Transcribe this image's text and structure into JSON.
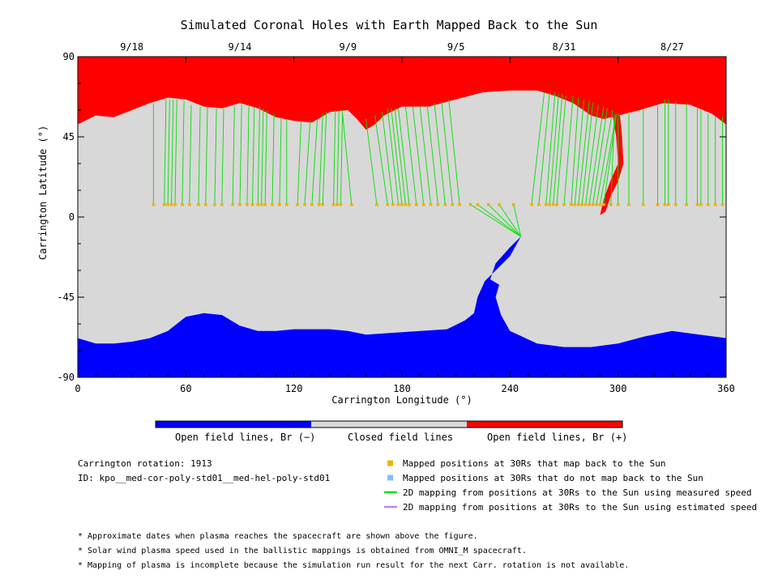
{
  "chart_data": {
    "type": "heatmap",
    "title": "Simulated Coronal Holes with Earth Mapped Back to the Sun",
    "xlabel": "Carrington Longitude (°)",
    "ylabel": "Carrington Latitude (°)",
    "xlim": [
      0,
      360
    ],
    "ylim": [
      -90,
      90
    ],
    "x_ticks": [
      0,
      60,
      120,
      180,
      240,
      300,
      360
    ],
    "y_ticks": [
      -90,
      -45,
      0,
      45,
      90
    ],
    "top_axis_dates": [
      {
        "label": "9/18",
        "lon": 30
      },
      {
        "label": "9/14",
        "lon": 90
      },
      {
        "label": "9/9",
        "lon": 150
      },
      {
        "label": "9/5",
        "lon": 210
      },
      {
        "label": "8/31",
        "lon": 270
      },
      {
        "label": "8/27",
        "lon": 330
      }
    ],
    "colors": {
      "open_negative": "#0000ff",
      "closed": "#d8d8d8",
      "open_positive": "#ff0000",
      "mapped_points": "#f0b000",
      "unmapped_points": "#7fbfff",
      "measured_speed_lines": "#00e000",
      "estimated_speed_lines": "#c080ff"
    },
    "north_hole_boundary": [
      [
        0,
        52
      ],
      [
        10,
        57
      ],
      [
        20,
        56
      ],
      [
        30,
        60
      ],
      [
        40,
        64
      ],
      [
        50,
        67
      ],
      [
        60,
        66
      ],
      [
        70,
        62
      ],
      [
        80,
        61
      ],
      [
        90,
        64
      ],
      [
        100,
        61
      ],
      [
        110,
        56
      ],
      [
        120,
        54
      ],
      [
        130,
        53
      ],
      [
        140,
        59
      ],
      [
        150,
        60
      ],
      [
        155,
        55
      ],
      [
        160,
        49
      ],
      [
        165,
        52
      ],
      [
        170,
        57
      ],
      [
        180,
        62
      ],
      [
        195,
        62
      ],
      [
        210,
        66
      ],
      [
        225,
        70
      ],
      [
        240,
        71
      ],
      [
        255,
        71
      ],
      [
        265,
        68
      ],
      [
        275,
        64
      ],
      [
        285,
        57
      ],
      [
        292,
        55
      ],
      [
        300,
        57
      ],
      [
        312,
        60
      ],
      [
        325,
        64
      ],
      [
        340,
        63
      ],
      [
        352,
        58
      ],
      [
        360,
        52
      ]
    ],
    "south_hole_boundary": [
      [
        0,
        -68
      ],
      [
        10,
        -71
      ],
      [
        20,
        -71
      ],
      [
        30,
        -70
      ],
      [
        40,
        -68
      ],
      [
        50,
        -64
      ],
      [
        60,
        -56
      ],
      [
        70,
        -54
      ],
      [
        80,
        -55
      ],
      [
        90,
        -61
      ],
      [
        100,
        -64
      ],
      [
        110,
        -64
      ],
      [
        120,
        -63
      ],
      [
        130,
        -63
      ],
      [
        140,
        -63
      ],
      [
        150,
        -64
      ],
      [
        160,
        -66
      ],
      [
        175,
        -65
      ],
      [
        190,
        -64
      ],
      [
        205,
        -63
      ],
      [
        215,
        -58
      ],
      [
        220,
        -54
      ],
      [
        222,
        -45
      ],
      [
        226,
        -36
      ],
      [
        234,
        -28
      ],
      [
        240,
        -22
      ],
      [
        246,
        -11
      ],
      [
        240,
        -17
      ],
      [
        232,
        -26
      ],
      [
        229,
        -35
      ],
      [
        234,
        -38
      ],
      [
        232,
        -45
      ],
      [
        235,
        -55
      ],
      [
        240,
        -64
      ],
      [
        255,
        -71
      ],
      [
        270,
        -73
      ],
      [
        285,
        -73
      ],
      [
        300,
        -71
      ],
      [
        315,
        -67
      ],
      [
        330,
        -64
      ],
      [
        345,
        -66
      ],
      [
        360,
        -68
      ]
    ],
    "positive_hole_extension": [
      [
        297,
        57
      ],
      [
        299,
        45
      ],
      [
        300,
        30
      ],
      [
        296,
        21
      ],
      [
        292,
        10
      ],
      [
        290,
        1
      ],
      [
        293,
        3
      ],
      [
        296,
        12
      ],
      [
        300,
        20
      ],
      [
        303,
        30
      ],
      [
        302,
        48
      ],
      [
        301,
        57
      ]
    ],
    "mapped_positions": {
      "lat": 7,
      "lon": [
        42,
        48,
        50,
        52,
        54,
        58,
        62,
        67,
        71,
        76,
        80,
        86,
        90,
        94,
        97,
        100,
        102,
        104,
        108,
        112,
        116,
        122,
        126,
        130,
        134,
        136,
        142,
        144,
        146,
        152,
        166,
        172,
        175,
        178,
        180,
        182,
        184,
        188,
        192,
        196,
        200,
        204,
        208,
        212,
        218,
        222,
        228,
        234,
        242,
        252,
        256,
        260,
        262,
        264,
        266,
        270,
        274,
        276,
        278,
        280,
        282,
        284,
        286,
        288,
        290,
        292,
        296,
        300,
        306,
        314,
        322,
        326,
        328,
        332,
        338,
        344,
        346,
        350,
        354,
        358
      ]
    },
    "footpoints": {
      "lat": [
        64,
        66,
        66,
        66,
        66,
        65,
        63,
        62,
        62,
        61,
        61,
        62,
        63,
        63,
        62,
        62,
        61,
        60,
        58,
        56,
        55,
        54,
        54,
        55,
        58,
        59,
        60,
        60,
        60,
        58,
        55,
        57,
        59,
        61,
        61,
        61,
        61,
        62,
        62,
        62,
        63,
        64,
        65,
        66,
        -11,
        -11,
        -11,
        -11,
        -11,
        70,
        70,
        70,
        69,
        69,
        68,
        68,
        67,
        66,
        65,
        64,
        63,
        62,
        61,
        60,
        58,
        57,
        58,
        58,
        58,
        60,
        62,
        66,
        66,
        65,
        64,
        62,
        60,
        58,
        57,
        56
      ],
      "lon": [
        42,
        49,
        51,
        53,
        55,
        59,
        63,
        68,
        72,
        77,
        81,
        87,
        91,
        95,
        98,
        101,
        103,
        105,
        109,
        113,
        116,
        124,
        129,
        133,
        136,
        138,
        143,
        145,
        147,
        147,
        160,
        165,
        169,
        172,
        174,
        176,
        178,
        182,
        186,
        190,
        194,
        198,
        202,
        206,
        246,
        246,
        246,
        246,
        246,
        259,
        262,
        265,
        267,
        269,
        271,
        275,
        278,
        281,
        284,
        286,
        289,
        292,
        294,
        297,
        299,
        299,
        298,
        300,
        306,
        314,
        322,
        326,
        328,
        332,
        338,
        344,
        346,
        350,
        354,
        358
      ]
    }
  },
  "colorbar": {
    "labels": [
      "Open field lines, Br (−)",
      "Closed field lines",
      "Open field lines, Br (+)"
    ]
  },
  "info": {
    "rotation": "Carrington rotation: 1913",
    "id": "ID: kpo__med-cor-poly-std01__med-hel-poly-std01"
  },
  "legend": [
    {
      "text": "Mapped positions at 30Rs that map back to the Sun",
      "kind": "square",
      "color": "#f0b000"
    },
    {
      "text": "Mapped positions at 30Rs that do not map back to the Sun",
      "kind": "square",
      "color": "#7fbfff"
    },
    {
      "text": "2D mapping from positions at 30Rs to the Sun using measured speed",
      "kind": "line",
      "color": "#00e000"
    },
    {
      "text": "2D mapping from positions at 30Rs to the Sun using estimated speed",
      "kind": "line",
      "color": "#c080ff"
    }
  ],
  "notes": [
    "* Approximate dates when plasma reaches the spacecraft are shown above the figure.",
    "* Solar wind plasma speed used in the ballistic mappings is obtained from OMNI_M spacecraft.",
    "* Mapping of plasma is incomplete because the simulation run result for the next Carr. rotation is not available."
  ]
}
